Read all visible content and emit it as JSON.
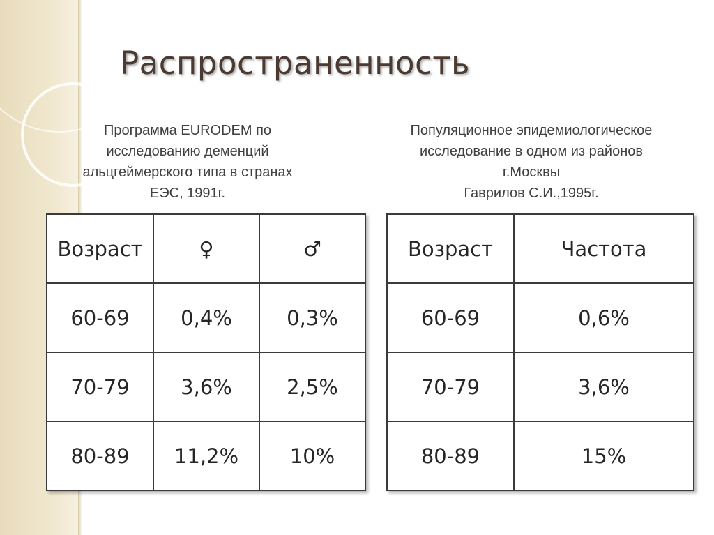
{
  "slide": {
    "title": "Распространенность"
  },
  "left_caption": [
    "Программа EURODEM по",
    "исследованию деменций",
    "альцгеймерского типа в странах",
    "ЕЭС, 1991г."
  ],
  "right_caption": [
    "Популяционное эпидемиологическое",
    "исследование в одном из районов",
    "г.Москвы",
    "Гаврилов С.И.,1995г."
  ],
  "left_table": {
    "headers": [
      "Возраст",
      "♀",
      "♂"
    ],
    "rows": [
      [
        "60-69",
        "0,4%",
        "0,3%"
      ],
      [
        "70-79",
        "3,6%",
        "2,5%"
      ],
      [
        "80-89",
        "11,2%",
        "10%"
      ]
    ]
  },
  "right_table": {
    "headers": [
      "Возраст",
      "Частота"
    ],
    "rows": [
      [
        "60-69",
        "0,6%"
      ],
      [
        "70-79",
        "3,6%"
      ],
      [
        "80-89",
        "15%"
      ]
    ]
  },
  "colors": {
    "title": "#4a3a31",
    "band": "#e8dcbc",
    "border": "#3b3b3b"
  }
}
